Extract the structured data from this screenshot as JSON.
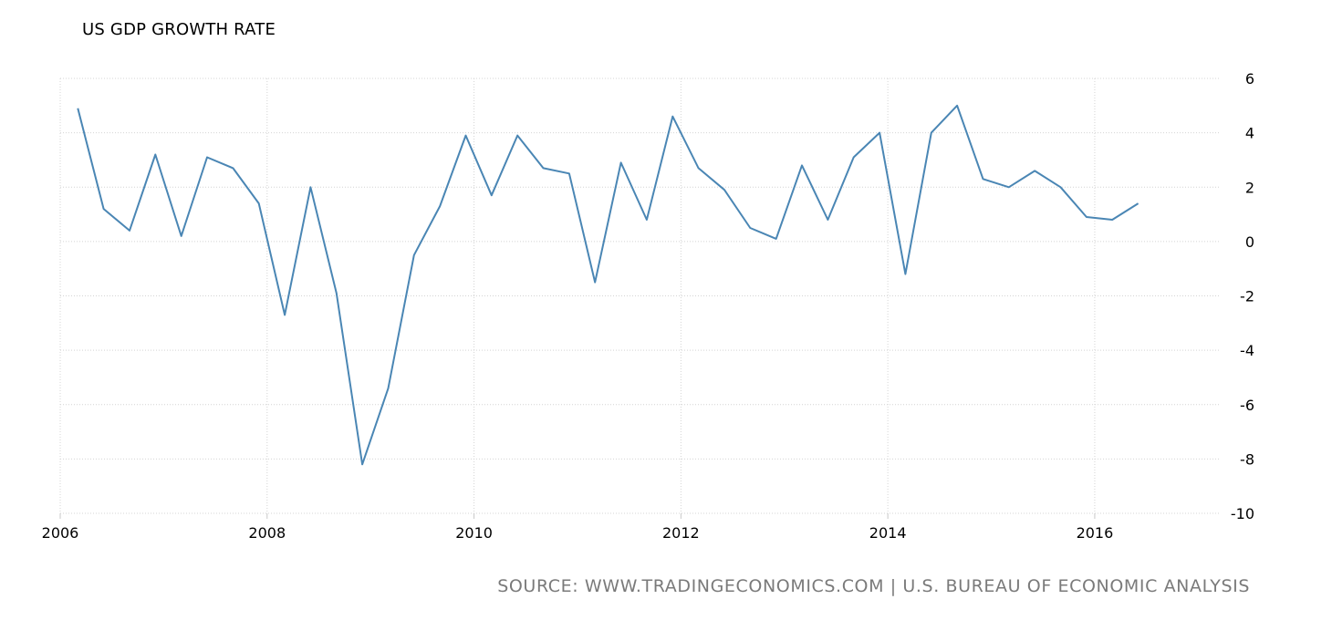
{
  "title": "US GDP GROWTH RATE",
  "source": "SOURCE: WWW.TRADINGECONOMICS.COM | U.S. BUREAU OF ECONOMIC ANALYSIS",
  "colors": {
    "line": "#4a86b4",
    "grid": "#d4d4d4",
    "source_text": "#7a7a7a"
  },
  "chart_data": {
    "type": "line",
    "title": "US GDP GROWTH RATE",
    "xlabel": "",
    "ylabel": "",
    "grid": true,
    "xlim": [
      2006,
      2017.2
    ],
    "ylim": [
      -10,
      6
    ],
    "x_ticks": [
      2006,
      2008,
      2010,
      2012,
      2014,
      2016
    ],
    "x_tick_labels": [
      "2006",
      "2008",
      "2010",
      "2012",
      "2014",
      "2016"
    ],
    "y_ticks": [
      6,
      4,
      2,
      0,
      -2,
      -4,
      -6,
      -8,
      -10
    ],
    "y_tick_labels": [
      "6",
      "4",
      "2",
      "0",
      "-2",
      "-4",
      "-6",
      "-8",
      "-10"
    ],
    "y_axis_position": "right",
    "series": [
      {
        "x": [
          2006.17,
          2006.42,
          2006.67,
          2006.92,
          2007.17,
          2007.42,
          2007.67,
          2007.92,
          2008.17,
          2008.42,
          2008.67,
          2008.92,
          2009.17,
          2009.42,
          2009.67,
          2009.92,
          2010.17,
          2010.42,
          2010.67,
          2010.92,
          2011.17,
          2011.42,
          2011.67,
          2011.92,
          2012.17,
          2012.42,
          2012.67,
          2012.92,
          2013.17,
          2013.42,
          2013.67,
          2013.92,
          2014.17,
          2014.42,
          2014.67,
          2014.92,
          2015.17,
          2015.42,
          2015.67,
          2015.92,
          2016.17,
          2016.42
        ],
        "y": [
          4.9,
          1.2,
          0.4,
          3.2,
          0.2,
          3.1,
          2.7,
          1.4,
          -2.7,
          2.0,
          -1.9,
          -8.2,
          -5.4,
          -0.5,
          1.3,
          3.9,
          1.7,
          3.9,
          2.7,
          2.5,
          -1.5,
          2.9,
          0.8,
          4.6,
          2.7,
          1.9,
          0.5,
          0.1,
          2.8,
          0.8,
          3.1,
          4.0,
          -1.2,
          4.0,
          5.0,
          2.3,
          2.0,
          2.6,
          2.0,
          0.9,
          0.8,
          1.4
        ]
      }
    ]
  }
}
